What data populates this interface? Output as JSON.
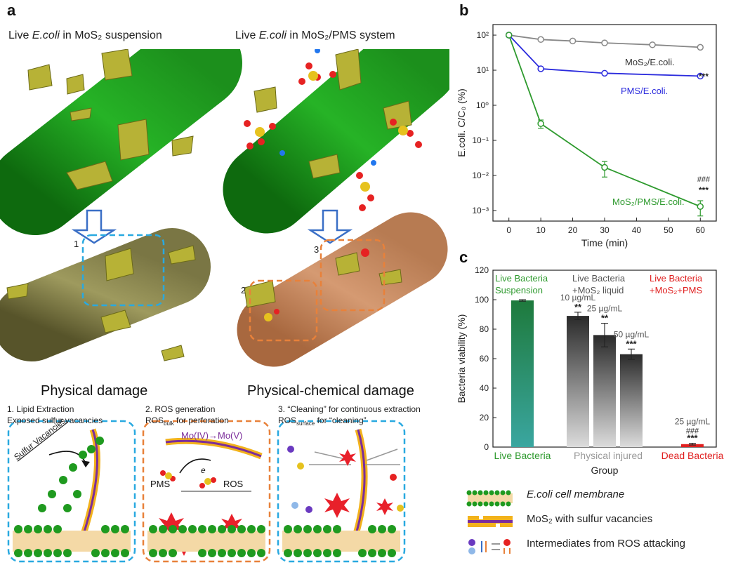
{
  "panel_a": {
    "letter": "a",
    "left_caption_pre": "Live ",
    "left_caption_species": "E.coli",
    "left_caption_post": " in MoS₂ suspension",
    "right_caption_pre": "Live ",
    "right_caption_species": "E.coli",
    "right_caption_post": " in MoS₂/PMS system",
    "left_result": "Physical damage",
    "right_result": "Physical-chemical damage",
    "box_labels": [
      "1",
      "2",
      "3"
    ],
    "mech1_title": "1. Lipid Extraction",
    "mech1_sub": "Exposed sulfur vacancies",
    "mech1_arrow_label": "Sulfur Vacancies",
    "mech2_title": "2. ROS generation",
    "mech2_sub_main": "ROS",
    "mech2_sub_subscript": "bulk",
    "mech2_sub_tail": " for perforation",
    "mech2_redox": "Mo(IV)→Mo(V)",
    "mech2_electron": "e",
    "mech2_pms": "PMS",
    "mech2_ros": "ROS",
    "mech3_title": "3. “Cleaning” for continuous extraction",
    "mech3_sub_main": "ROS",
    "mech3_sub_subscript": "surface",
    "mech3_sub_tail": " for “cleaning”"
  },
  "panel_b": {
    "letter": "b"
  },
  "panel_c": {
    "letter": "c"
  },
  "legend": {
    "membrane": "E.coli cell membrane",
    "mos2": "MoS₂ with sulfur vacancies",
    "intermediates": "Intermediates from ROS attacking"
  },
  "colors": {
    "blue_box": "#29a9e0",
    "orange_box": "#e8813a",
    "grey_line": "#888888",
    "blue_line": "#2b2bdd",
    "green_line": "#2e9a2e",
    "red_text": "#e02020",
    "green_text": "#2e9a2e"
  },
  "chart_data": [
    {
      "type": "line",
      "panel": "b",
      "ylabel": "E.coli. C/C₀ (%)",
      "xlabel": "Time (min)",
      "x_ticks": [
        0,
        10,
        20,
        30,
        40,
        50,
        60
      ],
      "y_scale": "log",
      "ylim": [
        0.0005,
        200
      ],
      "y_tick_labels": [
        "10²",
        "10¹",
        "10⁰",
        "10⁻¹",
        "10⁻²",
        "10⁻³"
      ],
      "y_tick_values": [
        100,
        10,
        1,
        0.1,
        0.01,
        0.001
      ],
      "series": [
        {
          "name": "MoS₂/E.coli.",
          "color": "#888888",
          "x": [
            0,
            10,
            20,
            30,
            45,
            60
          ],
          "y": [
            100,
            75,
            68,
            60,
            53,
            45
          ]
        },
        {
          "name": "PMS/E.coli.",
          "color": "#2b2bdd",
          "x": [
            0,
            10,
            30,
            60
          ],
          "y": [
            100,
            11,
            8.2,
            6.8
          ]
        },
        {
          "name": "MoS₂/PMS/E.coli.",
          "color": "#2e9a2e",
          "x": [
            0,
            10,
            30,
            60
          ],
          "y": [
            100,
            0.3,
            0.017,
            0.0013
          ],
          "err": [
            0,
            0.08,
            0.008,
            0.0006
          ]
        }
      ],
      "annotations": [
        "***",
        "###",
        "***"
      ]
    },
    {
      "type": "bar",
      "panel": "c",
      "ylabel": "Bacteria viability (%)",
      "xlabel": "Group",
      "ylim": [
        0,
        120
      ],
      "y_ticks": [
        0,
        20,
        40,
        60,
        80,
        100,
        120
      ],
      "group_headers": [
        {
          "line1": "Live Bacteria",
          "line2": "Suspension",
          "color": "#2e9a2e"
        },
        {
          "line1": "Live Bacteria",
          "line2": "+MoS₂ liquid",
          "color": "#555555"
        },
        {
          "line1": "Live Bacteria",
          "line2": "+MoS₂+PMS",
          "color": "#e02020"
        }
      ],
      "group_labels": [
        {
          "text": "Live Bacteria",
          "color": "#2e9a2e"
        },
        {
          "text": "Physical injured",
          "color": "#999999"
        },
        {
          "text": "Dead Bacteria",
          "color": "#e02020"
        }
      ],
      "bars": [
        {
          "name": "Live",
          "value": 99.5,
          "err": 0.5,
          "label": "",
          "sig": ""
        },
        {
          "name": "10 µg/mL",
          "value": 89,
          "err": 2.5,
          "label": "10 µg/mL",
          "sig": "**"
        },
        {
          "name": "25 µg/mL",
          "value": 76,
          "err": 8,
          "label": "25 µg/mL",
          "sig": "**"
        },
        {
          "name": "50 µg/mL",
          "value": 63,
          "err": 3.5,
          "label": "50 µg/mL",
          "sig": "***"
        },
        {
          "name": "25 µg/mL PMS",
          "value": 2,
          "err": 0.6,
          "label": "25 µg/mL",
          "sig": "***",
          "sig2": "###"
        }
      ]
    }
  ]
}
